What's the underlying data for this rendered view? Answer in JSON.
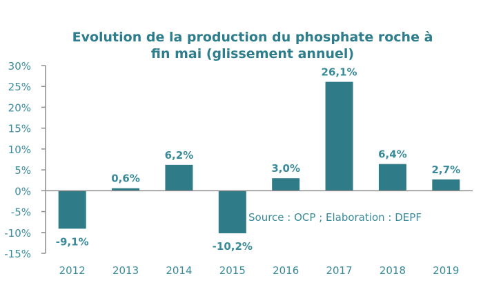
{
  "chart_data": {
    "type": "bar",
    "title_lines": [
      "Evolution de la production du phosphate roche à",
      "fin mai (glissement annuel)"
    ],
    "categories": [
      "2012",
      "2013",
      "2014",
      "2015",
      "2016",
      "2017",
      "2018",
      "2019"
    ],
    "values": [
      -9.1,
      0.6,
      6.2,
      -10.2,
      3.0,
      26.1,
      6.4,
      2.7
    ],
    "data_labels": [
      "-9,1%",
      "0,6%",
      "6,2%",
      "-10,2%",
      "3,0%",
      "26,1%",
      "6,4%",
      "2,7%"
    ],
    "yticks": [
      30,
      25,
      20,
      15,
      10,
      5,
      0,
      -5,
      -10,
      -15
    ],
    "ytick_labels": [
      "30%",
      "25%",
      "20%",
      "15%",
      "10%",
      "5%",
      "0%",
      "-5%",
      "-10%",
      "-15%"
    ],
    "ylim": [
      -15,
      30
    ],
    "xlabel": "",
    "ylabel": "",
    "grid": false,
    "annotation": "Source : OCP ; Elaboration : DEPF",
    "colors": {
      "bar": "#2f7b88",
      "text": "#3a8b9a",
      "title": "#2e7d8c",
      "axis": "#8c8c8c"
    }
  }
}
